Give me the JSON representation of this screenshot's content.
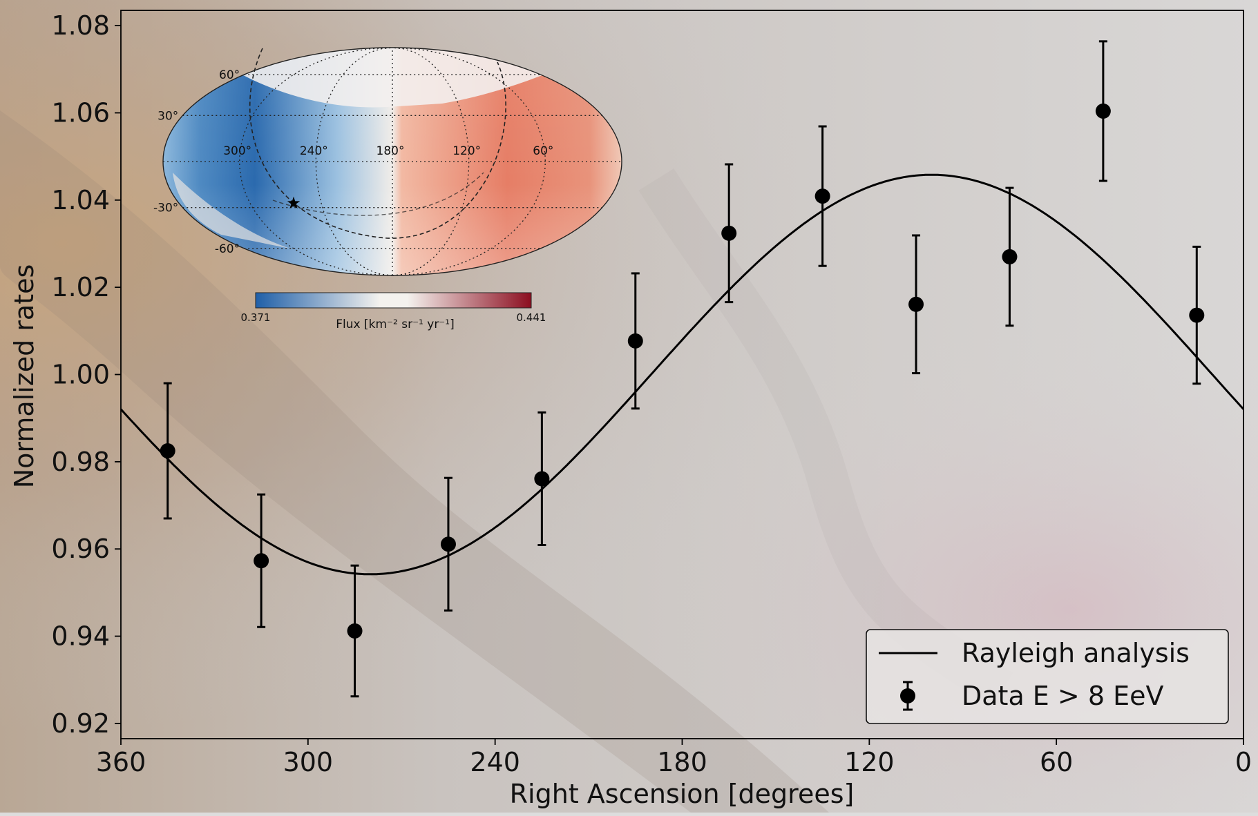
{
  "chart_data": {
    "type": "scatter",
    "xlabel": "Right Ascension [degrees]",
    "ylabel": "Normalized rates",
    "xlim": [
      360,
      0
    ],
    "ylim": [
      0.9165,
      1.0835
    ],
    "x_ticks": [
      360,
      300,
      240,
      180,
      120,
      60,
      0
    ],
    "x_tick_labels": [
      "360",
      "300",
      "240",
      "180",
      "120",
      "60",
      "0"
    ],
    "y_ticks": [
      0.92,
      0.94,
      0.96,
      0.98,
      1.0,
      1.02,
      1.04,
      1.06,
      1.08
    ],
    "y_tick_labels": [
      "0.92",
      "0.94",
      "0.96",
      "0.98",
      "1.00",
      "1.02",
      "1.04",
      "1.06",
      "1.08"
    ],
    "grid": false,
    "legend": {
      "placement": "bottom-right",
      "entries": [
        "Rayleigh analysis",
        "Data E > 8 EeV"
      ]
    },
    "series": [
      {
        "name": "Rayleigh analysis",
        "kind": "line",
        "color": "#000000",
        "model": {
          "offset": 1.0,
          "amplitude": 0.0458,
          "phase_deg": 100
        }
      },
      {
        "name": "Data E > 8 EeV",
        "kind": "errorbar",
        "color": "#000000",
        "x": [
          345,
          315,
          285,
          255,
          225,
          195,
          165,
          135,
          105,
          75,
          45,
          15
        ],
        "y": [
          0.9825,
          0.9573,
          0.9412,
          0.9611,
          0.9761,
          1.0077,
          1.0324,
          1.0409,
          1.0161,
          1.027,
          1.0604,
          1.0136
        ],
        "yerr": [
          0.0155,
          0.0152,
          0.015,
          0.0152,
          0.0152,
          0.0155,
          0.0158,
          0.016,
          0.0158,
          0.0158,
          0.016,
          0.0157
        ]
      }
    ],
    "inset": {
      "type": "heatmap",
      "projection": "mollweide",
      "lon_labels": [
        "300°",
        "240°",
        "180°",
        "120°",
        "60°"
      ],
      "lat_labels": [
        "60°",
        "30°",
        "-30°",
        "-60°"
      ],
      "colorbar": {
        "min_label": "0.371",
        "max_label": "0.441",
        "label": "Flux [km⁻² sr⁻¹ yr⁻¹]",
        "low_color": "#1f5fa8",
        "mid_color": "#f4f2ee",
        "high_color": "#8c0e20"
      },
      "marker": "galactic-center-star"
    }
  }
}
